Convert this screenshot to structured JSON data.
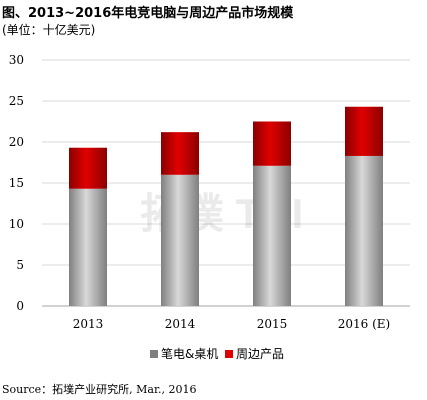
{
  "title": "图、2013~2016年电竞电脑与周边产品市场规模",
  "unit": "(单位：十亿美元)",
  "source": "Source：拓墣产业研究所, Mar., 2016",
  "watermark": "拓墣 TRI",
  "colors": {
    "series1_light": "#d8d8d8",
    "series1_dark": "#7f7f7f",
    "series2_light": "#e00000",
    "series2_dark": "#8b0000",
    "grid": "#d9d9d9"
  },
  "chart_data": {
    "type": "bar",
    "stacked": true,
    "categories": [
      "2013",
      "2014",
      "2015",
      "2016 (E)"
    ],
    "series": [
      {
        "name": "笔电&桌机",
        "values": [
          14.3,
          16.0,
          17.1,
          18.3
        ]
      },
      {
        "name": "周边产品",
        "values": [
          5.0,
          5.2,
          5.4,
          6.0
        ]
      }
    ],
    "ylim": [
      0,
      30
    ],
    "yticks": [
      "0",
      "5",
      "10",
      "15",
      "20",
      "25",
      "30"
    ],
    "grid": true,
    "legend": "bottom"
  }
}
